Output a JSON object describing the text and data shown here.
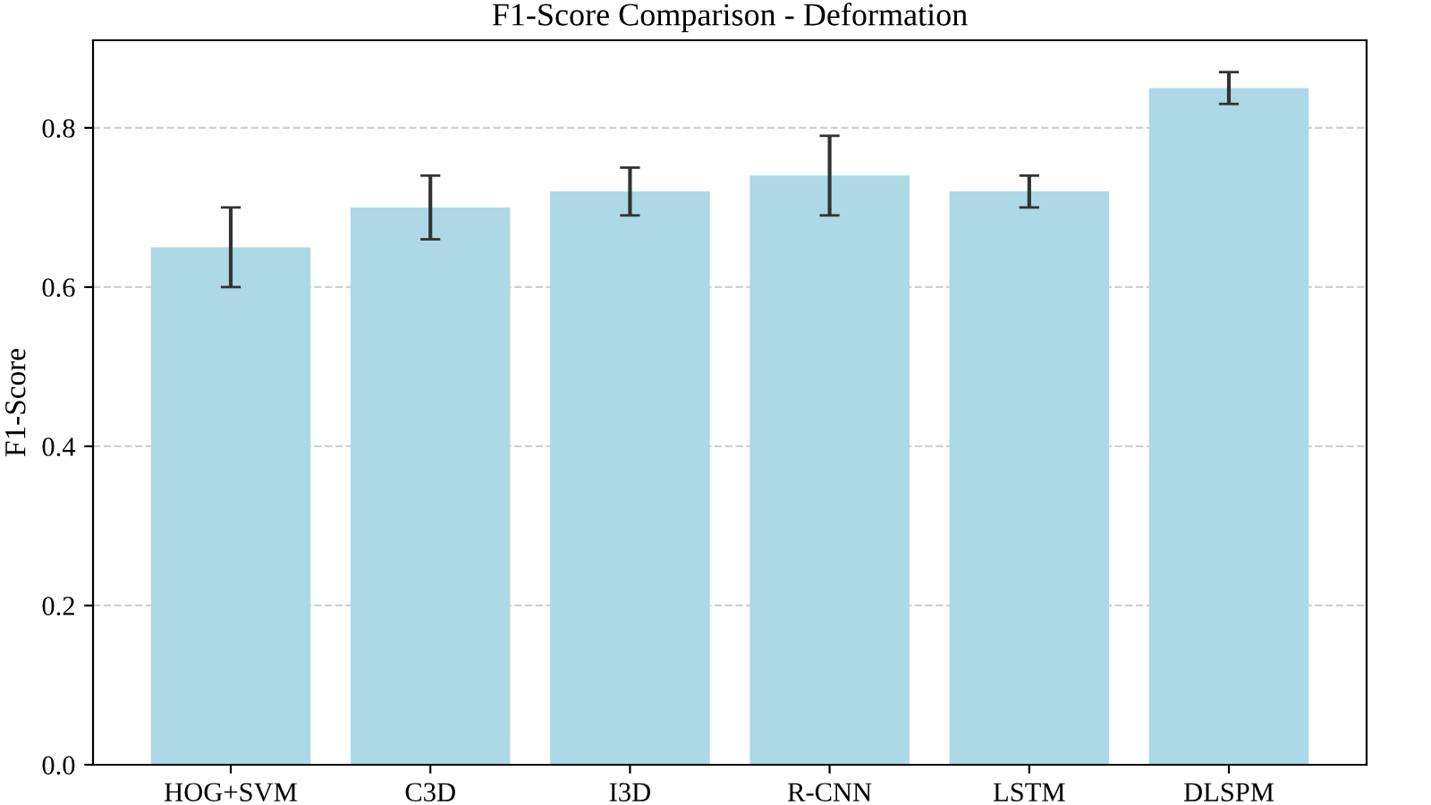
{
  "chart_data": {
    "type": "bar",
    "title": "F1-Score Comparison - Deformation",
    "ylabel": "F1-Score",
    "categories": [
      "HOG+SVM",
      "C3D",
      "I3D",
      "R-CNN",
      "LSTM",
      "DLSPM"
    ],
    "values": [
      0.65,
      0.7,
      0.72,
      0.74,
      0.72,
      0.85
    ],
    "errors": [
      0.05,
      0.04,
      0.03,
      0.05,
      0.02,
      0.02
    ],
    "color": "#add8e6",
    "ylim": [
      0,
      0.91
    ],
    "yticks": [
      {
        "value": 0,
        "label": "0.0"
      },
      0.2,
      0.4,
      0.6,
      0.8
    ],
    "grid": "y"
  }
}
